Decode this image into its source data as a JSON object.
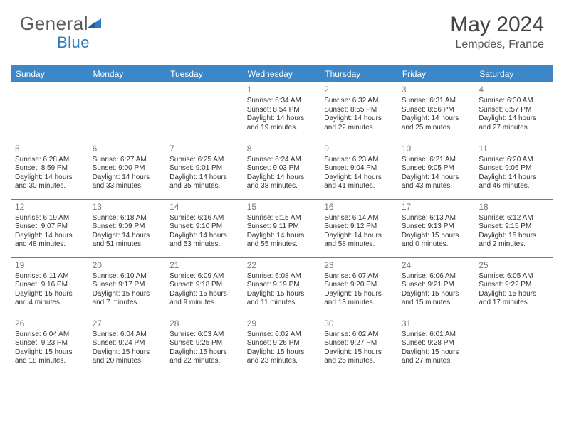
{
  "brand": {
    "part1": "General",
    "part2": "Blue"
  },
  "colors": {
    "header_bg": "#3b87c8",
    "header_fg": "#ffffff",
    "border": "#3b87c8",
    "text": "#333333",
    "daynum": "#777777",
    "logo_gray": "#5a5a5a",
    "logo_blue": "#2f7bbf"
  },
  "title": "May 2024",
  "location": "Lempdes, France",
  "weekdays": [
    "Sunday",
    "Monday",
    "Tuesday",
    "Wednesday",
    "Thursday",
    "Friday",
    "Saturday"
  ],
  "layout": {
    "cols": 7,
    "rows": 5,
    "first_weekday_index": 3,
    "days_in_month": 31
  },
  "days": [
    {
      "n": 1,
      "sunrise": "6:34 AM",
      "sunset": "8:54 PM",
      "daylight": "14 hours and 19 minutes."
    },
    {
      "n": 2,
      "sunrise": "6:32 AM",
      "sunset": "8:55 PM",
      "daylight": "14 hours and 22 minutes."
    },
    {
      "n": 3,
      "sunrise": "6:31 AM",
      "sunset": "8:56 PM",
      "daylight": "14 hours and 25 minutes."
    },
    {
      "n": 4,
      "sunrise": "6:30 AM",
      "sunset": "8:57 PM",
      "daylight": "14 hours and 27 minutes."
    },
    {
      "n": 5,
      "sunrise": "6:28 AM",
      "sunset": "8:59 PM",
      "daylight": "14 hours and 30 minutes."
    },
    {
      "n": 6,
      "sunrise": "6:27 AM",
      "sunset": "9:00 PM",
      "daylight": "14 hours and 33 minutes."
    },
    {
      "n": 7,
      "sunrise": "6:25 AM",
      "sunset": "9:01 PM",
      "daylight": "14 hours and 35 minutes."
    },
    {
      "n": 8,
      "sunrise": "6:24 AM",
      "sunset": "9:03 PM",
      "daylight": "14 hours and 38 minutes."
    },
    {
      "n": 9,
      "sunrise": "6:23 AM",
      "sunset": "9:04 PM",
      "daylight": "14 hours and 41 minutes."
    },
    {
      "n": 10,
      "sunrise": "6:21 AM",
      "sunset": "9:05 PM",
      "daylight": "14 hours and 43 minutes."
    },
    {
      "n": 11,
      "sunrise": "6:20 AM",
      "sunset": "9:06 PM",
      "daylight": "14 hours and 46 minutes."
    },
    {
      "n": 12,
      "sunrise": "6:19 AM",
      "sunset": "9:07 PM",
      "daylight": "14 hours and 48 minutes."
    },
    {
      "n": 13,
      "sunrise": "6:18 AM",
      "sunset": "9:09 PM",
      "daylight": "14 hours and 51 minutes."
    },
    {
      "n": 14,
      "sunrise": "6:16 AM",
      "sunset": "9:10 PM",
      "daylight": "14 hours and 53 minutes."
    },
    {
      "n": 15,
      "sunrise": "6:15 AM",
      "sunset": "9:11 PM",
      "daylight": "14 hours and 55 minutes."
    },
    {
      "n": 16,
      "sunrise": "6:14 AM",
      "sunset": "9:12 PM",
      "daylight": "14 hours and 58 minutes."
    },
    {
      "n": 17,
      "sunrise": "6:13 AM",
      "sunset": "9:13 PM",
      "daylight": "15 hours and 0 minutes."
    },
    {
      "n": 18,
      "sunrise": "6:12 AM",
      "sunset": "9:15 PM",
      "daylight": "15 hours and 2 minutes."
    },
    {
      "n": 19,
      "sunrise": "6:11 AM",
      "sunset": "9:16 PM",
      "daylight": "15 hours and 4 minutes."
    },
    {
      "n": 20,
      "sunrise": "6:10 AM",
      "sunset": "9:17 PM",
      "daylight": "15 hours and 7 minutes."
    },
    {
      "n": 21,
      "sunrise": "6:09 AM",
      "sunset": "9:18 PM",
      "daylight": "15 hours and 9 minutes."
    },
    {
      "n": 22,
      "sunrise": "6:08 AM",
      "sunset": "9:19 PM",
      "daylight": "15 hours and 11 minutes."
    },
    {
      "n": 23,
      "sunrise": "6:07 AM",
      "sunset": "9:20 PM",
      "daylight": "15 hours and 13 minutes."
    },
    {
      "n": 24,
      "sunrise": "6:06 AM",
      "sunset": "9:21 PM",
      "daylight": "15 hours and 15 minutes."
    },
    {
      "n": 25,
      "sunrise": "6:05 AM",
      "sunset": "9:22 PM",
      "daylight": "15 hours and 17 minutes."
    },
    {
      "n": 26,
      "sunrise": "6:04 AM",
      "sunset": "9:23 PM",
      "daylight": "15 hours and 18 minutes."
    },
    {
      "n": 27,
      "sunrise": "6:04 AM",
      "sunset": "9:24 PM",
      "daylight": "15 hours and 20 minutes."
    },
    {
      "n": 28,
      "sunrise": "6:03 AM",
      "sunset": "9:25 PM",
      "daylight": "15 hours and 22 minutes."
    },
    {
      "n": 29,
      "sunrise": "6:02 AM",
      "sunset": "9:26 PM",
      "daylight": "15 hours and 23 minutes."
    },
    {
      "n": 30,
      "sunrise": "6:02 AM",
      "sunset": "9:27 PM",
      "daylight": "15 hours and 25 minutes."
    },
    {
      "n": 31,
      "sunrise": "6:01 AM",
      "sunset": "9:28 PM",
      "daylight": "15 hours and 27 minutes."
    }
  ],
  "labels": {
    "sunrise": "Sunrise:",
    "sunset": "Sunset:",
    "daylight": "Daylight:"
  }
}
